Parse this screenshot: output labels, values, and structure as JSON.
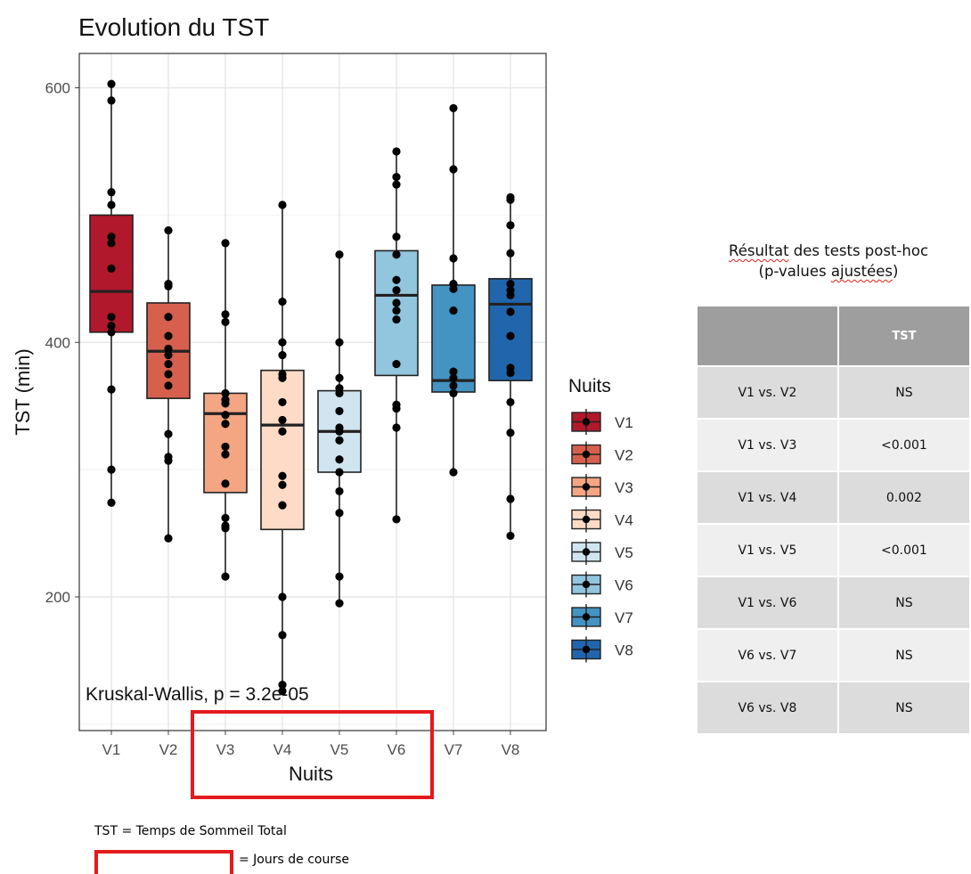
{
  "chart_data": {
    "type": "box",
    "title": "Evolution du TST",
    "xlabel": "Nuits",
    "ylabel": "TST (min)",
    "ylim": [
      95,
      627
    ],
    "yticks": [
      200,
      400,
      600
    ],
    "categories": [
      "V1",
      "V2",
      "V3",
      "V4",
      "V5",
      "V6",
      "V7",
      "V8"
    ],
    "legend_title": "Nuits",
    "legend_position": "right",
    "grid": true,
    "annotation": "Kruskal-Wallis, p = 3.2e-05",
    "series": [
      {
        "name": "V1",
        "color": "#b2182b",
        "q1": 408,
        "median": 440,
        "q3": 500,
        "whisker_low": 274,
        "whisker_high": 603,
        "points": [
          603,
          590,
          518,
          508,
          483,
          478,
          458,
          420,
          408,
          413,
          363,
          300,
          274
        ]
      },
      {
        "name": "V2",
        "color": "#d6604d",
        "q1": 356,
        "median": 393,
        "q3": 431,
        "whisker_low": 246,
        "whisker_high": 488,
        "points": [
          488,
          446,
          444,
          420,
          405,
          395,
          390,
          383,
          375,
          366,
          328,
          310,
          307,
          246
        ]
      },
      {
        "name": "V3",
        "color": "#f4a582",
        "q1": 282,
        "median": 344,
        "q3": 360,
        "whisker_low": 216,
        "whisker_high": 478,
        "points": [
          478,
          422,
          416,
          360,
          355,
          352,
          343,
          336,
          318,
          312,
          289,
          262,
          256,
          254,
          216
        ]
      },
      {
        "name": "V4",
        "color": "#fddbc7",
        "q1": 253,
        "median": 335,
        "q3": 378,
        "whisker_low": 126,
        "whisker_high": 508,
        "points": [
          508,
          432,
          400,
          390,
          375,
          372,
          353,
          339,
          330,
          295,
          288,
          272,
          200,
          170,
          131,
          126
        ]
      },
      {
        "name": "V5",
        "color": "#d1e5f0",
        "q1": 298,
        "median": 330,
        "q3": 362,
        "whisker_low": 195,
        "whisker_high": 469,
        "points": [
          469,
          400,
          372,
          364,
          360,
          346,
          333,
          330,
          323,
          308,
          298,
          283,
          266,
          216,
          195
        ]
      },
      {
        "name": "V6",
        "color": "#92c5de",
        "q1": 374,
        "median": 437,
        "q3": 472,
        "whisker_low": 261,
        "whisker_high": 550,
        "points": [
          550,
          530,
          524,
          483,
          469,
          449,
          441,
          431,
          425,
          418,
          383,
          351,
          348,
          333,
          261
        ]
      },
      {
        "name": "V7",
        "color": "#4393c3",
        "q1": 361,
        "median": 370,
        "q3": 445,
        "whisker_low": 298,
        "whisker_high": 584,
        "points": [
          584,
          536,
          466,
          446,
          442,
          425,
          377,
          372,
          366,
          360,
          298
        ]
      },
      {
        "name": "V8",
        "color": "#2166ac",
        "q1": 370,
        "median": 430,
        "q3": 450,
        "whisker_low": 248,
        "whisker_high": 514,
        "points": [
          514,
          512,
          492,
          470,
          446,
          441,
          437,
          424,
          405,
          380,
          376,
          353,
          329,
          277,
          248
        ]
      }
    ]
  },
  "posthoc_table": {
    "title_line1_part1": "Résultat",
    "title_line1_part2": " des tests post-hoc",
    "title_line2_part1": "(p-values ",
    "title_line2_part2": "ajustées",
    "title_line2_part3": ")",
    "header": [
      "",
      "TST"
    ],
    "rows": [
      [
        "V1 vs. V2",
        "NS"
      ],
      [
        "V1 vs. V3",
        "<0.001"
      ],
      [
        "V1 vs. V4",
        "0.002"
      ],
      [
        "V1 vs. V5",
        "<0.001"
      ],
      [
        "V1 vs. V6",
        "NS"
      ],
      [
        "V6 vs. V7",
        "NS"
      ],
      [
        "V6 vs. V8",
        "NS"
      ]
    ]
  },
  "notes": {
    "tst_definition": "TST = Temps de Sommeil Total",
    "course_days": "= Jours de course"
  },
  "highlight_color": "#e41a1c"
}
